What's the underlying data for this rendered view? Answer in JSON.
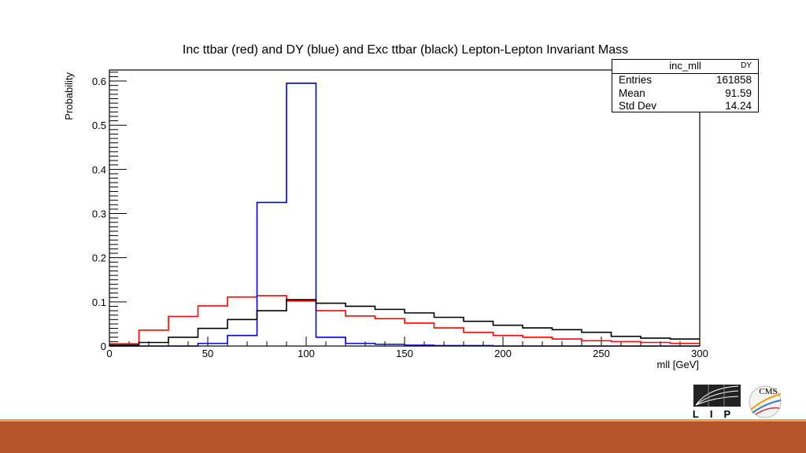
{
  "chart_data": {
    "type": "histogram",
    "title": "Inc ttbar (red) and DY (blue) and Exc ttbar (black) Lepton-Lepton Invariant Mass",
    "xlabel": "mll [GeV]",
    "ylabel": "Probability",
    "xlim": [
      0,
      300
    ],
    "ylim": [
      0,
      0.625
    ],
    "x_ticks": [
      0,
      50,
      100,
      150,
      200,
      250,
      300
    ],
    "y_ticks": [
      0,
      0.1,
      0.2,
      0.3,
      0.4,
      0.5,
      0.6
    ],
    "bin_edges": [
      0,
      15,
      30,
      45,
      60,
      75,
      90,
      105,
      120,
      135,
      150,
      165,
      180,
      195,
      210,
      225,
      240,
      255,
      270,
      285,
      300
    ],
    "series": [
      {
        "color": "#ff0000",
        "values": [
          0.005,
          0.036,
          0.067,
          0.091,
          0.111,
          0.114,
          0.102,
          0.08,
          0.068,
          0.062,
          0.052,
          0.041,
          0.031,
          0.024,
          0.02,
          0.016,
          0.012,
          0.01,
          0.008,
          0.006
        ]
      },
      {
        "color": "#0000cc",
        "values": [
          0.0,
          0.0,
          0.0,
          0.006,
          0.024,
          0.325,
          0.595,
          0.02,
          0.006,
          0.004,
          0.002,
          0.001,
          0.001,
          0.0,
          0.0,
          0.0,
          0.0,
          0.0,
          0.0,
          0.0
        ]
      },
      {
        "color": "#000000",
        "values": [
          0.002,
          0.008,
          0.02,
          0.04,
          0.06,
          0.08,
          0.105,
          0.097,
          0.09,
          0.083,
          0.075,
          0.065,
          0.056,
          0.047,
          0.041,
          0.037,
          0.031,
          0.022,
          0.018,
          0.016
        ]
      }
    ],
    "stats": {
      "name": "inc_mll",
      "tag": "DY",
      "rows": [
        {
          "label": "Entries",
          "value": "161858"
        },
        {
          "label": "Mean",
          "value": "91.59"
        },
        {
          "label": "Std Dev",
          "value": "14.24"
        }
      ]
    }
  },
  "logo": {
    "left_text": "LIP",
    "right_text": "CMS"
  }
}
